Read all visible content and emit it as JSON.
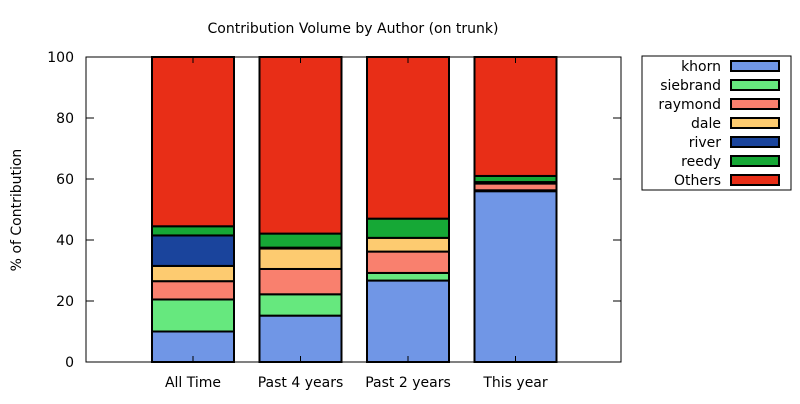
{
  "chart_data": {
    "type": "bar",
    "stacked": true,
    "title": "Contribution Volume by Author (on trunk)",
    "xlabel": "",
    "ylabel": "% of Contribution",
    "ylim": [
      0,
      100
    ],
    "yticks": [
      0,
      20,
      40,
      60,
      80,
      100
    ],
    "grid": false,
    "legend": "outside-top-right",
    "categories": [
      "All Time",
      "Past 4 years",
      "Past 2 years",
      "This year"
    ],
    "series": [
      {
        "name": "khorn",
        "color": "#7096e6",
        "values": [
          10.0,
          15.2,
          26.7,
          56.0
        ]
      },
      {
        "name": "siebrand",
        "color": "#66e87e",
        "values": [
          10.5,
          7.0,
          2.5,
          0.3
        ]
      },
      {
        "name": "raymond",
        "color": "#f9806e",
        "values": [
          6.0,
          8.3,
          7.0,
          2.2
        ]
      },
      {
        "name": "dale",
        "color": "#fdcb70",
        "values": [
          5.0,
          6.7,
          4.5,
          0.5
        ]
      },
      {
        "name": "river",
        "color": "#1a449c",
        "values": [
          10.0,
          0.3,
          0.0,
          0.0
        ]
      },
      {
        "name": "reedy",
        "color": "#16a836",
        "values": [
          3.0,
          4.6,
          6.3,
          2.0
        ]
      },
      {
        "name": "Others",
        "color": "#e82e17",
        "values": [
          55.5,
          57.9,
          53.0,
          39.0
        ]
      }
    ]
  }
}
